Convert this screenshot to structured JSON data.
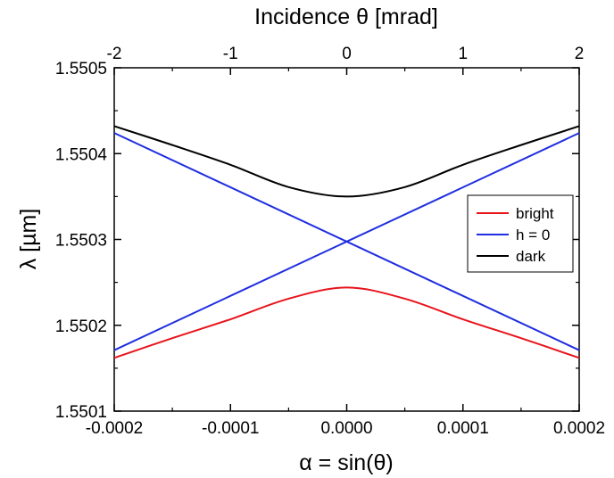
{
  "chart_data": {
    "type": "line",
    "title": "",
    "xlabel": "α = sin(θ)",
    "ylabel": "λ [µm]",
    "top_xlabel": "Incidence θ [mrad]",
    "xlim": [
      -0.0002,
      0.0002
    ],
    "ylim": [
      1.5501,
      1.5505
    ],
    "top_xlim": [
      -2,
      2
    ],
    "x_ticks": [
      -0.0002,
      -0.0001,
      0.0,
      0.0001,
      0.0002
    ],
    "x_tick_labels": [
      "-0.0002",
      "-0.0001",
      "0.0000",
      "0.0001",
      "0.0002"
    ],
    "y_ticks": [
      1.5501,
      1.5502,
      1.5503,
      1.5504,
      1.5505
    ],
    "y_tick_labels": [
      "1.5501",
      "1.5502",
      "1.5503",
      "1.5504",
      "1.5505"
    ],
    "top_x_ticks": [
      -2,
      -1,
      0,
      1,
      2
    ],
    "top_x_tick_labels": [
      "-2",
      "-1",
      "0",
      "1",
      "2"
    ],
    "grid": false,
    "legend_position": "right",
    "series": [
      {
        "name": "bright",
        "color": "#e8141b",
        "x": [
          -0.0002,
          -0.00015,
          -0.0001,
          -5e-05,
          0.0,
          5e-05,
          0.0001,
          0.00015,
          0.0002
        ],
        "y": [
          1.550162,
          1.550185,
          1.550207,
          1.550231,
          1.550244,
          1.550231,
          1.550207,
          1.550185,
          1.550162
        ]
      },
      {
        "name": "h = 0",
        "color": "#1f2ee0",
        "x": [
          -0.0002,
          0.0002
        ],
        "y": [
          1.550424,
          1.550171
        ],
        "x2": [
          -0.0002,
          0.0002
        ],
        "y2": [
          1.550171,
          1.550424
        ]
      },
      {
        "name": "dark",
        "color": "#000000",
        "x": [
          -0.0002,
          -0.00015,
          -0.0001,
          -5e-05,
          0.0,
          5e-05,
          0.0001,
          0.00015,
          0.0002
        ],
        "y": [
          1.550432,
          1.55041,
          1.550387,
          1.550361,
          1.55035,
          1.550361,
          1.550387,
          1.55041,
          1.550432
        ]
      }
    ]
  }
}
